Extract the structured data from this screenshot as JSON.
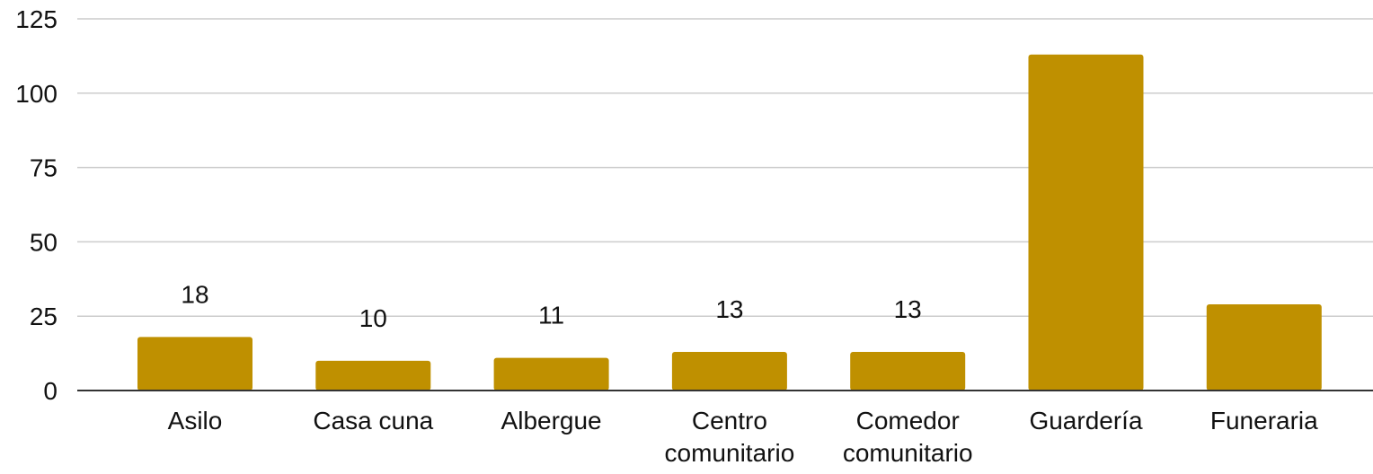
{
  "chart_data": {
    "type": "bar",
    "title": "",
    "xlabel": "",
    "ylabel": "",
    "categories": [
      [
        "Asilo"
      ],
      [
        "Casa cuna"
      ],
      [
        "Albergue"
      ],
      [
        "Centro",
        "comunitario"
      ],
      [
        "Comedor",
        "comunitario"
      ],
      [
        "Guardería"
      ],
      [
        "Funeraria"
      ]
    ],
    "values": [
      18,
      10,
      11,
      13,
      13,
      113,
      29
    ],
    "data_labels": [
      "18",
      "10",
      "11",
      "13",
      "13",
      null,
      null
    ],
    "ylim": [
      0,
      125
    ],
    "yticks": [
      0,
      25,
      50,
      75,
      100,
      125
    ],
    "grid": true,
    "legend": "none",
    "colors": {
      "bar": "#bf9000",
      "grid": "#cccccc",
      "axis": "#333333",
      "text": "#111111"
    }
  }
}
